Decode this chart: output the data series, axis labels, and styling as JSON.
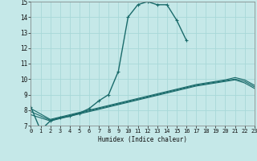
{
  "xlabel": "Humidex (Indice chaleur)",
  "bg_color": "#c5e8e8",
  "grid_color": "#a8d8d8",
  "line_color": "#1a6b6b",
  "x_min": 0,
  "x_max": 23,
  "y_min": 7,
  "y_max": 15,
  "curve1_x": [
    0,
    1,
    2,
    3,
    4,
    5,
    6,
    7,
    8,
    9,
    10,
    11,
    12,
    13,
    14,
    15,
    16
  ],
  "curve1_y": [
    8.2,
    6.7,
    7.3,
    7.5,
    7.6,
    7.8,
    8.1,
    8.6,
    9.0,
    10.5,
    14.0,
    14.8,
    15.0,
    14.8,
    14.8,
    13.8,
    12.5
  ],
  "curve2_x": [
    0,
    2,
    3,
    4,
    5,
    6,
    7,
    8,
    9,
    10,
    11,
    12,
    13,
    14,
    15,
    16,
    17,
    18,
    19,
    20,
    21,
    22,
    23
  ],
  "curve2_y": [
    8.1,
    7.4,
    7.55,
    7.7,
    7.85,
    8.0,
    8.15,
    8.3,
    8.45,
    8.6,
    8.75,
    8.9,
    9.05,
    9.2,
    9.35,
    9.5,
    9.65,
    9.75,
    9.85,
    9.95,
    10.1,
    9.95,
    9.6
  ],
  "curve3_x": [
    0,
    2,
    3,
    4,
    5,
    6,
    7,
    8,
    9,
    10,
    11,
    12,
    13,
    14,
    15,
    16,
    17,
    18,
    19,
    20,
    21,
    22,
    23
  ],
  "curve3_y": [
    7.9,
    7.35,
    7.5,
    7.65,
    7.8,
    7.95,
    8.1,
    8.25,
    8.4,
    8.55,
    8.7,
    8.85,
    9.0,
    9.15,
    9.3,
    9.45,
    9.6,
    9.7,
    9.8,
    9.9,
    10.0,
    9.85,
    9.5
  ],
  "curve4_x": [
    0,
    2,
    3,
    4,
    5,
    6,
    7,
    8,
    9,
    10,
    11,
    12,
    13,
    14,
    15,
    16,
    17,
    18,
    19,
    20,
    21,
    22,
    23
  ],
  "curve4_y": [
    7.7,
    7.3,
    7.45,
    7.6,
    7.75,
    7.9,
    8.05,
    8.2,
    8.35,
    8.5,
    8.65,
    8.8,
    8.95,
    9.1,
    9.25,
    9.4,
    9.55,
    9.65,
    9.75,
    9.85,
    9.95,
    9.75,
    9.4
  ]
}
